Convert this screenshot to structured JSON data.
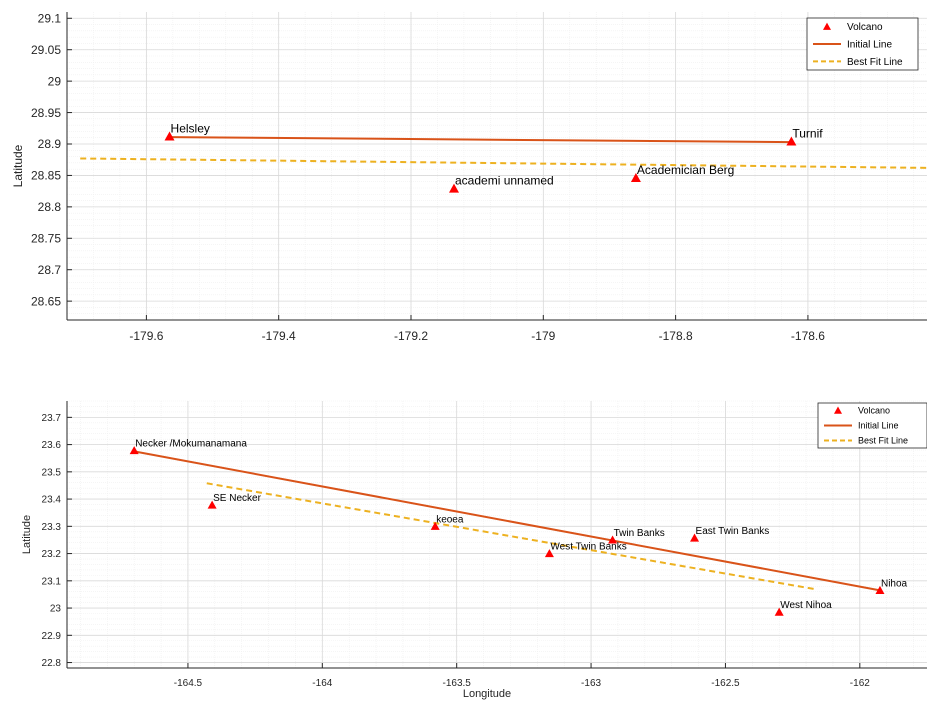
{
  "colors": {
    "volcano": "#ff0000",
    "initial_line": "#d95319",
    "best_fit": "#edb120",
    "grid_major": "#d9d9d9",
    "grid_minor": "#efefef",
    "axis": "#262626"
  },
  "chart_data": [
    {
      "type": "scatter",
      "title": "",
      "xlabel": "",
      "ylabel": "Latitude",
      "xlim": [
        -179.72,
        -178.42
      ],
      "ylim": [
        28.62,
        29.11
      ],
      "xticks": [
        -179.6,
        -179.4,
        -179.2,
        -179,
        -178.8,
        -178.6
      ],
      "xtick_labels": [
        "-179.6",
        "-179.4",
        "-179.2",
        "-179",
        "-178.8",
        "-178.6"
      ],
      "yticks": [
        28.65,
        28.7,
        28.75,
        28.8,
        28.85,
        28.9,
        28.95,
        29,
        29.05,
        29.1
      ],
      "ytick_labels": [
        "28.65",
        "28.7",
        "28.75",
        "28.8",
        "28.85",
        "28.9",
        "28.95",
        "29",
        "29.05",
        "29.1"
      ],
      "grid": true,
      "legend_position": "top-right",
      "legend": [
        "Volcano",
        "Initial Line",
        "Best Fit Line"
      ],
      "volcanoes": [
        {
          "name": "Helsley",
          "lon": -179.565,
          "lat": 28.912
        },
        {
          "name": "Turnif",
          "lon": -178.625,
          "lat": 28.904
        },
        {
          "name": "academi unnamed",
          "lon": -179.135,
          "lat": 28.829
        },
        {
          "name": "Academician Berg",
          "lon": -178.86,
          "lat": 28.846
        }
      ],
      "initial_line": {
        "x": [
          -179.565,
          -178.625
        ],
        "y": [
          28.911,
          28.903
        ]
      },
      "best_fit_line": {
        "x": [
          -179.7,
          -178.42
        ],
        "y": [
          28.877,
          28.862
        ]
      }
    },
    {
      "type": "scatter",
      "title": "",
      "xlabel": "Longitude",
      "ylabel": "Latitude",
      "xlim": [
        -164.95,
        -161.75
      ],
      "ylim": [
        22.78,
        23.76
      ],
      "xticks": [
        -164.5,
        -164,
        -163.5,
        -163,
        -162.5,
        -162
      ],
      "xtick_labels": [
        "-164.5",
        "-164",
        "-163.5",
        "-163",
        "-162.5",
        "-162"
      ],
      "yticks": [
        22.8,
        22.9,
        23,
        23.1,
        23.2,
        23.3,
        23.4,
        23.5,
        23.6,
        23.7
      ],
      "ytick_labels": [
        "22.8",
        "22.9",
        "23",
        "23.1",
        "23.2",
        "23.3",
        "23.4",
        "23.5",
        "23.6",
        "23.7"
      ],
      "grid": true,
      "legend_position": "top-right",
      "legend": [
        "Volcano",
        "Initial Line",
        "Best Fit Line"
      ],
      "volcanoes": [
        {
          "name": "Necker /Mokumanamana",
          "lon": -164.7,
          "lat": 23.578
        },
        {
          "name": "SE Necker",
          "lon": -164.41,
          "lat": 23.378
        },
        {
          "name": "keoea",
          "lon": -163.58,
          "lat": 23.3
        },
        {
          "name": "West Twin Banks",
          "lon": -163.155,
          "lat": 23.2
        },
        {
          "name": "Twin Banks",
          "lon": -162.92,
          "lat": 23.25
        },
        {
          "name": "East Twin Banks",
          "lon": -162.615,
          "lat": 23.257
        },
        {
          "name": "West Nihoa",
          "lon": -162.3,
          "lat": 22.985
        },
        {
          "name": "Nihoa",
          "lon": -161.925,
          "lat": 23.065
        }
      ],
      "initial_line": {
        "x": [
          -164.7,
          -161.925
        ],
        "y": [
          23.575,
          23.065
        ]
      },
      "best_fit_line": {
        "x": [
          -164.43,
          -162.17
        ],
        "y": [
          23.458,
          23.07
        ]
      }
    }
  ]
}
